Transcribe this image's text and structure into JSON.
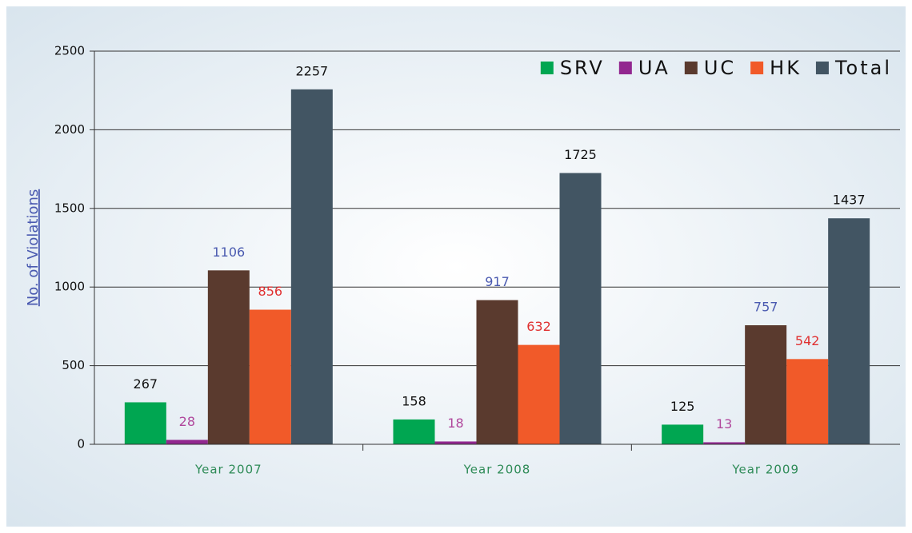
{
  "chart_data": {
    "type": "bar",
    "y_label": "No. of Violations",
    "categories": [
      "Year 2007",
      "Year 2008",
      "Year 2009"
    ],
    "series": [
      {
        "name": "SRV",
        "color": "#00a651",
        "label_color": "#111111",
        "values": [
          267,
          158,
          125
        ]
      },
      {
        "name": "UA",
        "color": "#92278f",
        "label_color": "#b0479c",
        "values": [
          28,
          18,
          13
        ]
      },
      {
        "name": "UC",
        "color": "#5a3a2e",
        "label_color": "#4a5ab0",
        "values": [
          1106,
          917,
          757
        ]
      },
      {
        "name": "HK",
        "color": "#f15a29",
        "label_color": "#e03030",
        "values": [
          856,
          632,
          542
        ]
      },
      {
        "name": "Total",
        "color": "#425563",
        "label_color": "#111111",
        "values": [
          2257,
          1725,
          1437
        ]
      }
    ],
    "ylim": [
      0,
      2500
    ],
    "yticks": [
      0,
      500,
      1000,
      1500,
      2000,
      2500
    ],
    "grid": true,
    "legend": "upper right"
  }
}
